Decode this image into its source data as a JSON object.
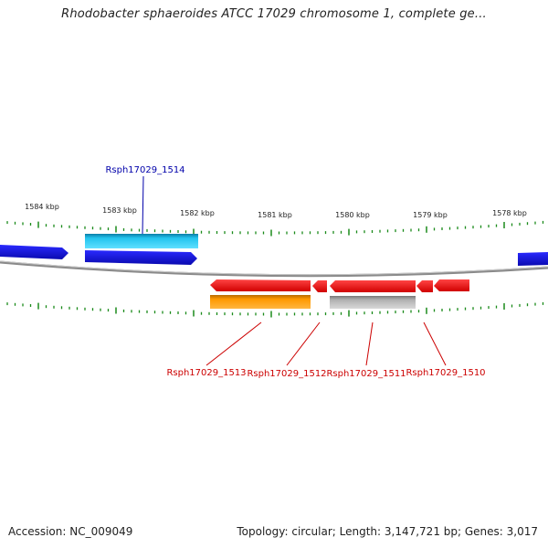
{
  "title": "Rhodobacter sphaeroides ATCC 17029 chromosome 1, complete ge...",
  "footer": {
    "accession": "Accession: NC_009049",
    "summary": "Topology: circular; Length: 3,147,721 bp; Genes: 3,017"
  },
  "scale": {
    "unit": "kbp",
    "ticks": [
      "1584 kbp",
      "1583 kbp",
      "1582 kbp",
      "1581 kbp",
      "1580 kbp",
      "1579 kbp",
      "1578 kbp"
    ],
    "tick_color": "#1a8a1a"
  },
  "colors": {
    "backbone": "#8a8a8a",
    "gene_forward": "#1010d8",
    "gene_forward_light": "#22c4ee",
    "gene_reverse": "#ee1111",
    "gene_reverse_orange": "#ff9900",
    "gene_reverse_gray": "#b0b0b0",
    "label_forward": "#0000aa",
    "label_reverse": "#cc0000"
  },
  "labels": {
    "top": [
      "Rsph17029_1514"
    ],
    "bottom": [
      "Rsph17029_1513",
      "Rsph17029_1512",
      "Rsph17029_1511",
      "Rsph17029_1510"
    ]
  }
}
